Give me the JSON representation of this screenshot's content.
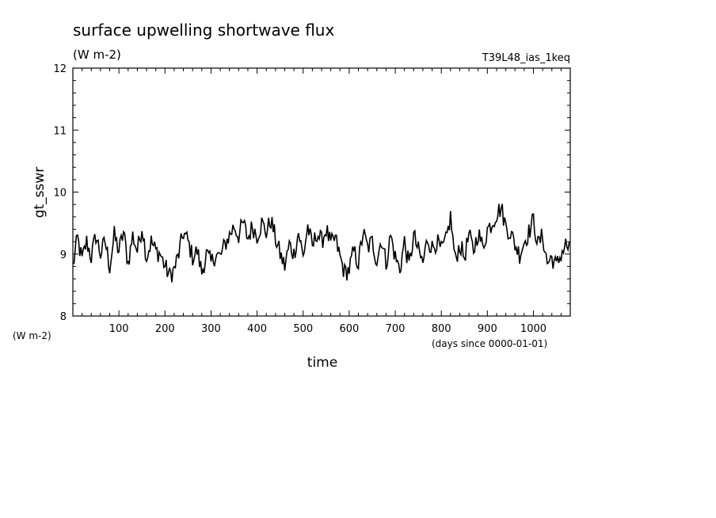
{
  "chart_data": {
    "type": "line",
    "title": "surface upwelling shortwave flux",
    "subtitle": "(W m-2)",
    "run_label": "T39L48_ias_1keq",
    "xlabel": "time",
    "xunits": "(days since 0000-01-01)",
    "ylabel": "gt_sswr",
    "yunits": "(W m-2)",
    "xlim": [
      0,
      1080
    ],
    "ylim": [
      8,
      12
    ],
    "x_ticks": [
      100,
      200,
      300,
      400,
      500,
      600,
      700,
      800,
      900,
      1000
    ],
    "y_ticks": [
      8,
      9,
      10,
      11,
      12
    ],
    "grid": false,
    "legend": "none",
    "series": [
      {
        "x": [
          0,
          10,
          20,
          30,
          40,
          50,
          60,
          70,
          80,
          90,
          100,
          110,
          120,
          130,
          140,
          150,
          160,
          170,
          180,
          190,
          200,
          210,
          220,
          230,
          240,
          250,
          260,
          270,
          280,
          290,
          300,
          310,
          320,
          330,
          340,
          350,
          360,
          370,
          380,
          390,
          400,
          410,
          420,
          430,
          440,
          450,
          460,
          470,
          480,
          490,
          500,
          510,
          520,
          530,
          540,
          550,
          560,
          570,
          580,
          590,
          600,
          610,
          620,
          630,
          640,
          650,
          660,
          670,
          680,
          690,
          700,
          710,
          720,
          730,
          740,
          750,
          760,
          770,
          780,
          790,
          800,
          810,
          820,
          830,
          840,
          850,
          860,
          870,
          880,
          890,
          900,
          910,
          920,
          930,
          940,
          950,
          960,
          970,
          980,
          990,
          1000,
          1010,
          1020,
          1030,
          1040,
          1050,
          1060,
          1070,
          1080
        ],
        "values": [
          8.8,
          9.25,
          8.9,
          9.2,
          8.95,
          9.3,
          9.0,
          9.2,
          8.8,
          9.3,
          9.05,
          9.35,
          8.85,
          9.3,
          9.05,
          9.45,
          8.95,
          9.2,
          9.05,
          9.0,
          8.8,
          8.65,
          8.75,
          9.0,
          9.35,
          9.2,
          8.95,
          9.05,
          8.7,
          9.0,
          8.85,
          9.0,
          8.95,
          9.15,
          9.3,
          9.45,
          9.3,
          9.5,
          9.25,
          9.45,
          9.3,
          9.5,
          9.35,
          9.55,
          9.25,
          9.0,
          8.8,
          9.15,
          9.0,
          9.35,
          8.95,
          9.45,
          9.1,
          9.35,
          9.2,
          9.4,
          9.15,
          9.25,
          8.95,
          8.7,
          8.75,
          9.05,
          8.85,
          9.35,
          9.1,
          9.2,
          8.9,
          9.25,
          8.85,
          9.3,
          8.95,
          8.75,
          9.2,
          8.8,
          9.3,
          9.05,
          8.85,
          9.25,
          9.1,
          9.2,
          9.05,
          9.2,
          9.6,
          8.9,
          9.15,
          8.95,
          9.3,
          9.05,
          9.35,
          9.1,
          9.4,
          9.5,
          9.65,
          9.75,
          9.45,
          9.35,
          9.15,
          9.0,
          9.2,
          9.35,
          9.55,
          9.15,
          9.3,
          8.85,
          8.95,
          8.8,
          9.0,
          9.15,
          9.05
        ]
      }
    ]
  }
}
